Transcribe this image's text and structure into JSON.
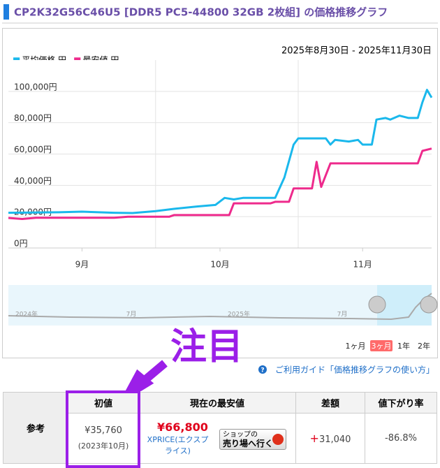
{
  "header": {
    "title": "CP2K32G56C46U5 [DDR5 PC5-44800 32GB 2枚組] の価格推移グラフ"
  },
  "chart_data": {
    "type": "line",
    "date_range": "2025年8月30日 - 2025年11月30日",
    "xlim": [
      "2025-08-30",
      "2025-11-30"
    ],
    "ylim": [
      0,
      120000
    ],
    "yticks": [
      {
        "value": 0,
        "label": "0円"
      },
      {
        "value": 20000,
        "label": "20,000円"
      },
      {
        "value": 40000,
        "label": "40,000円"
      },
      {
        "value": 60000,
        "label": "60,000円"
      },
      {
        "value": 80000,
        "label": "80,000円"
      },
      {
        "value": 100000,
        "label": "100,000円"
      }
    ],
    "xticks": [
      {
        "value": "2025-09-15",
        "label": "9月"
      },
      {
        "value": "2025-10-15",
        "label": "10月"
      },
      {
        "value": "2025-11-15",
        "label": "11月"
      }
    ],
    "xgrid": [
      "2025-10-01",
      "2025-11-01"
    ],
    "grid": true,
    "series": [
      {
        "name": "平均価格 円",
        "color": "#1ab8ec",
        "x": [
          "2025-08-30",
          "2025-09-10",
          "2025-09-15",
          "2025-09-22",
          "2025-09-26",
          "2025-10-01",
          "2025-10-05",
          "2025-10-10",
          "2025-10-14",
          "2025-10-16",
          "2025-10-18",
          "2025-10-20",
          "2025-10-27",
          "2025-10-29",
          "2025-10-31",
          "2025-11-01",
          "2025-11-07",
          "2025-11-08",
          "2025-11-09",
          "2025-11-12",
          "2025-11-14",
          "2025-11-15",
          "2025-11-17",
          "2025-11-18",
          "2025-11-20",
          "2025-11-21",
          "2025-11-23",
          "2025-11-25",
          "2025-11-27",
          "2025-11-28",
          "2025-11-29",
          "2025-11-30"
        ],
        "values": [
          22500,
          22800,
          23200,
          22500,
          22300,
          23500,
          25000,
          26500,
          27500,
          32000,
          31000,
          32000,
          32000,
          45000,
          66000,
          70000,
          70000,
          66000,
          69000,
          68000,
          69000,
          66000,
          66000,
          82000,
          83000,
          82000,
          84500,
          83000,
          83000,
          93000,
          101000,
          96000
        ]
      },
      {
        "name": "最安値 円",
        "color": "#ee2a8c",
        "x": [
          "2025-08-30",
          "2025-09-02",
          "2025-09-05",
          "2025-09-22",
          "2025-09-25",
          "2025-10-04",
          "2025-10-05",
          "2025-10-17",
          "2025-10-18",
          "2025-10-26",
          "2025-10-27",
          "2025-10-30",
          "2025-10-31",
          "2025-11-04",
          "2025-11-05",
          "2025-11-06",
          "2025-11-08",
          "2025-11-27",
          "2025-11-28",
          "2025-11-30"
        ],
        "values": [
          19200,
          18500,
          19300,
          19300,
          20000,
          20000,
          21000,
          21000,
          28500,
          28500,
          29500,
          29500,
          38000,
          38000,
          55000,
          39000,
          54000,
          54000,
          62000,
          63500
        ]
      }
    ],
    "navigator_labels": [
      "2024年",
      "7月",
      "2025年",
      "7月"
    ],
    "range_buttons": [
      "1ヶ月",
      "3ヶ月",
      "1年",
      "2年"
    ],
    "selected_range": 1
  },
  "annotation": {
    "text": "注目"
  },
  "guide_link": "ご利用ガイド「価格推移グラフの使い方」",
  "table": {
    "headers": [
      "初値",
      "現在の最安値",
      "差額",
      "値下がり率"
    ],
    "row_label": "参考",
    "initial_price": "¥35,760",
    "initial_date": "(2023年10月)",
    "current_price": "¥66,800",
    "shop": "XPRICE(エクスプライス)",
    "shop_button": [
      "ショップの",
      "売り場へ行く"
    ],
    "diff_sign": "+",
    "diff": "31,040",
    "rate": "-86.8%"
  }
}
